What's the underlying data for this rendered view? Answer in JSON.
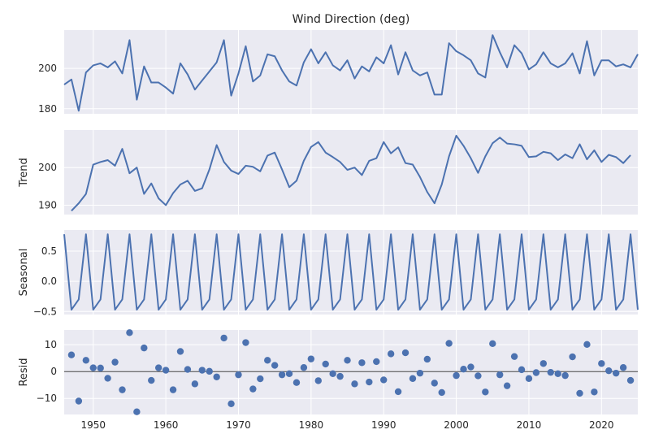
{
  "chart_data": {
    "type": "line",
    "title": "Wind Direction (deg)",
    "xlim": [
      1946,
      2025
    ],
    "xticks": [
      1950,
      1960,
      1970,
      1980,
      1990,
      2000,
      2010,
      2020
    ],
    "panels": [
      {
        "id": "observed",
        "ylabel": "",
        "kind": "line",
        "ylim": [
          177.5,
          219
        ],
        "yticks": [
          180,
          200
        ],
        "start": 1946,
        "values": [
          192,
          194.5,
          179,
          198,
          201.5,
          202.5,
          200.5,
          203.5,
          197.5,
          214,
          184.5,
          201,
          193,
          193,
          190.5,
          187.5,
          202.5,
          197,
          189.5,
          194,
          198.5,
          203,
          214,
          186.5,
          197.5,
          211,
          193.5,
          196.5,
          207,
          206,
          199,
          193.5,
          191.5,
          203,
          209.5,
          202.5,
          208,
          201.5,
          199,
          204,
          195,
          201,
          198.5,
          205.5,
          202.5,
          211.5,
          197,
          208,
          199,
          196.5,
          198,
          187,
          187,
          212.5,
          208.5,
          206.5,
          204,
          197.5,
          195.5,
          216.5,
          208,
          200.5,
          211.5,
          207.5,
          199.5,
          202,
          208,
          202.5,
          200.5,
          202.5,
          207.5,
          197.5,
          213.5,
          196.5,
          204,
          204,
          201,
          202,
          200.5,
          207
        ]
      },
      {
        "id": "trend",
        "ylabel": "Trend",
        "kind": "line",
        "ylim": [
          187.5,
          210
        ],
        "yticks": [
          190,
          200
        ],
        "start": 1947,
        "values": [
          188.5,
          190.5,
          193,
          200.8,
          201.5,
          202,
          200.5,
          205,
          198.5,
          200,
          193,
          195.8,
          191.8,
          190,
          193.2,
          195.5,
          196.5,
          193.8,
          194.5,
          199.5,
          206,
          201.5,
          199.2,
          198.3,
          200.5,
          200.2,
          199,
          203.2,
          204,
          199.5,
          194.8,
          196.5,
          201.8,
          205.5,
          206.8,
          204,
          202.8,
          201.5,
          199.4,
          200,
          198,
          201.8,
          202.5,
          206.8,
          203.8,
          205.4,
          201.2,
          200.8,
          197.5,
          193.5,
          190.5,
          195.5,
          203,
          208.5,
          205.8,
          202.5,
          198.6,
          203,
          206.5,
          208,
          206.4,
          206.2,
          205.8,
          202.8,
          203,
          204.2,
          203.8,
          202,
          203.5,
          202.5,
          206.2,
          202.2,
          204.6,
          201.5,
          203.4,
          202.8,
          201.2,
          203.3
        ]
      },
      {
        "id": "seasonal",
        "ylabel": "Seasonal",
        "kind": "line",
        "ylim": [
          -0.55,
          0.85
        ],
        "yticks": [
          -0.5,
          0.0,
          0.5
        ],
        "ytick_labels": [
          "−0.5",
          "0.0",
          "0.5"
        ],
        "start": 1946,
        "values": [
          0.78,
          -0.47,
          -0.3,
          0.78,
          -0.47,
          -0.3,
          0.78,
          -0.47,
          -0.3,
          0.78,
          -0.47,
          -0.3,
          0.78,
          -0.47,
          -0.3,
          0.78,
          -0.47,
          -0.3,
          0.78,
          -0.47,
          -0.3,
          0.78,
          -0.47,
          -0.3,
          0.78,
          -0.47,
          -0.3,
          0.78,
          -0.47,
          -0.3,
          0.78,
          -0.47,
          -0.3,
          0.78,
          -0.47,
          -0.3,
          0.78,
          -0.47,
          -0.3,
          0.78,
          -0.47,
          -0.3,
          0.78,
          -0.47,
          -0.3,
          0.78,
          -0.47,
          -0.3,
          0.78,
          -0.47,
          -0.3,
          0.78,
          -0.47,
          -0.3,
          0.78,
          -0.47,
          -0.3,
          0.78,
          -0.47,
          -0.3,
          0.78,
          -0.47,
          -0.3,
          0.78,
          -0.47,
          -0.3,
          0.78,
          -0.47,
          -0.3,
          0.78,
          -0.47,
          -0.3,
          0.78,
          -0.47,
          -0.3,
          0.78,
          -0.47,
          -0.3,
          0.78,
          -0.47
        ]
      },
      {
        "id": "resid",
        "ylabel": "Resid",
        "kind": "scatter",
        "ylim": [
          -16,
          15.5
        ],
        "yticks": [
          -10,
          0,
          10
        ],
        "ytick_labels": [
          "−10",
          "0",
          "10"
        ],
        "zero_line": true,
        "start": 1947,
        "values": [
          6.2,
          -11,
          4.2,
          1.4,
          1.3,
          -2.5,
          3.5,
          -6.8,
          14.5,
          -15,
          8.8,
          -3.3,
          1.4,
          0.5,
          -6.8,
          7.5,
          0.8,
          -4.6,
          0.5,
          0.1,
          -2,
          12.5,
          -12,
          -1.2,
          10.8,
          -6.5,
          -2.7,
          4.2,
          2.3,
          -1.2,
          -0.8,
          -4.1,
          1.5,
          4.7,
          -3.4,
          2.8,
          -0.8,
          -1.8,
          4.2,
          -4.6,
          3.3,
          -3.9,
          3.7,
          -3.1,
          6.6,
          -7.5,
          7,
          -2.6,
          -0.6,
          4.6,
          -4.3,
          -7.8,
          10.5,
          -1.5,
          0.9,
          1.7,
          -1.6,
          -7.6,
          10.4,
          -1.2,
          -5.3,
          5.6,
          0.7,
          -2.6,
          -0.4,
          3,
          -0.3,
          -0.8,
          -1.5,
          5.5,
          -8.1,
          10.1,
          -7.6,
          3,
          0.3,
          -0.6,
          1.5,
          -3.3
        ]
      }
    ]
  }
}
